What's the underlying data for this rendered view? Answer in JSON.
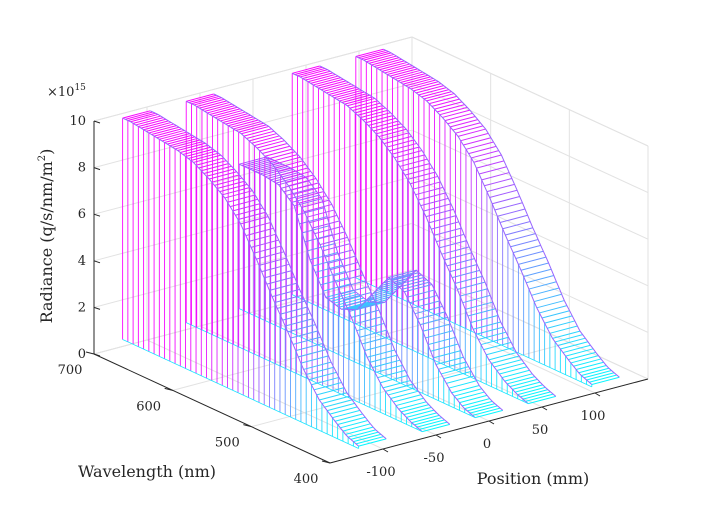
{
  "chart_data": {
    "type": "surface3d",
    "title": "",
    "xlabel": "Position (mm)",
    "ylabel": "Wavelength (nm)",
    "zlabel": "Radiance (q/s/nm/m²)",
    "zlabel_base": "Radiance (q/s/nm/m",
    "zlabel_sup": "2",
    "zlabel_close": ")",
    "z_multiplier_base": "×10",
    "z_multiplier_exp": "15",
    "xlim": [
      -150,
      150
    ],
    "ylim": [
      400,
      700
    ],
    "zlim": [
      0,
      10
    ],
    "x_ticks": [
      -100,
      -50,
      0,
      50,
      100
    ],
    "x_tick_labels": [
      "-100",
      "-50",
      "0",
      "50",
      "100"
    ],
    "y_ticks": [
      400,
      500,
      600,
      700
    ],
    "y_tick_labels": [
      "400",
      "500",
      "600",
      "700"
    ],
    "z_ticks": [
      0,
      2,
      4,
      6,
      8,
      10
    ],
    "z_tick_labels": [
      "0",
      "2",
      "4",
      "6",
      "8",
      "10"
    ],
    "grid": true,
    "colormap": [
      "#00ffff",
      "#ff00ff"
    ],
    "series": [
      {
        "position": -110,
        "wavelength": [
          400,
          415,
          430,
          450,
          470,
          490,
          510,
          530,
          550,
          570,
          590,
          610,
          630,
          650,
          670,
          690,
          700
        ],
        "radiance": [
          0.4,
          0.6,
          1.0,
          1.6,
          2.6,
          3.9,
          5.1,
          6.4,
          7.6,
          8.4,
          8.9,
          9.3,
          9.5,
          9.6,
          9.7,
          9.8,
          9.8
        ]
      },
      {
        "position": -50,
        "wavelength": [
          400,
          415,
          430,
          450,
          470,
          490,
          510,
          530,
          550,
          570,
          590,
          610,
          630,
          650,
          670,
          690,
          700
        ],
        "radiance": [
          0.3,
          0.5,
          0.8,
          1.4,
          2.4,
          3.8,
          5.0,
          6.3,
          7.4,
          8.2,
          8.8,
          9.2,
          9.5,
          9.6,
          9.7,
          9.8,
          9.8
        ]
      },
      {
        "position": 0,
        "wavelength": [
          400,
          415,
          430,
          450,
          470,
          490,
          510,
          530,
          550,
          570,
          590,
          610,
          630,
          650,
          670,
          690,
          700
        ],
        "radiance": [
          0.3,
          0.5,
          0.9,
          1.8,
          3.2,
          4.3,
          4.6,
          3.6,
          2.6,
          2.3,
          2.5,
          3.8,
          5.8,
          6.4,
          6.5,
          6.5,
          6.5
        ]
      },
      {
        "position": 50,
        "wavelength": [
          400,
          415,
          430,
          450,
          470,
          490,
          510,
          530,
          550,
          570,
          590,
          610,
          630,
          650,
          670,
          690,
          700
        ],
        "radiance": [
          0.3,
          0.5,
          0.8,
          1.4,
          2.4,
          3.8,
          5.0,
          6.3,
          7.4,
          8.2,
          8.8,
          9.2,
          9.5,
          9.6,
          9.7,
          9.8,
          9.8
        ]
      },
      {
        "position": 110,
        "wavelength": [
          400,
          415,
          430,
          450,
          470,
          490,
          510,
          530,
          550,
          570,
          590,
          610,
          630,
          650,
          670,
          690,
          700
        ],
        "radiance": [
          0.4,
          0.6,
          1.0,
          1.6,
          2.6,
          3.9,
          5.1,
          6.4,
          7.6,
          8.4,
          8.9,
          9.3,
          9.5,
          9.6,
          9.7,
          9.8,
          9.8
        ]
      }
    ]
  }
}
